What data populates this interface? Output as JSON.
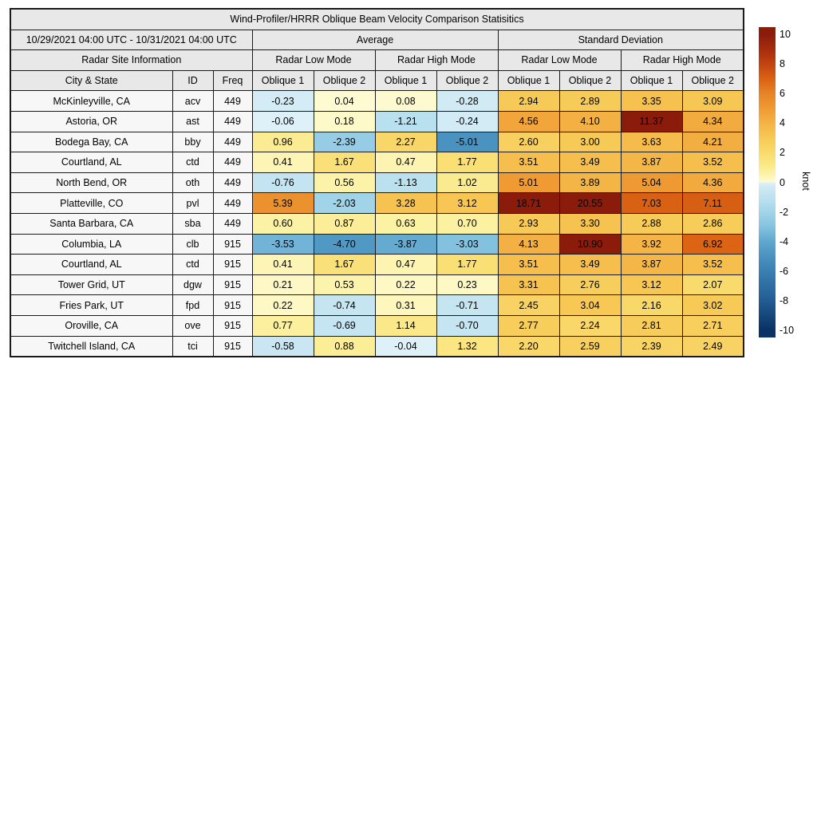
{
  "title": "Wind-Profiler/HRRR Oblique Beam Velocity Comparison Statisitics",
  "header": {
    "date_range": "10/29/2021 04:00 UTC - 10/31/2021 04:00 UTC",
    "group_average": "Average",
    "group_std": "Standard Deviation",
    "site_info": "Radar Site Information",
    "modes": [
      "Radar Low Mode",
      "Radar High Mode",
      "Radar Low Mode",
      "Radar High Mode"
    ],
    "col_city": "City & State",
    "col_id": "ID",
    "col_freq": "Freq",
    "oblique": [
      "Oblique 1",
      "Oblique 2",
      "Oblique 1",
      "Oblique 2",
      "Oblique 1",
      "Oblique 2",
      "Oblique 1",
      "Oblique 2"
    ]
  },
  "colors": {
    "header_bg": "#e8e8e8",
    "label_bg": "#f7f7f7",
    "border": "#1a1a1a"
  },
  "chart_data": {
    "type": "heatmap",
    "title": "Wind-Profiler/HRRR Oblique Beam Velocity Comparison Statisitics",
    "subtitle_period": "10/29/2021 04:00 UTC - 10/31/2021 04:00 UTC",
    "units": "knot",
    "columns": [
      "City & State",
      "ID",
      "Freq",
      "Average Radar Low Mode Oblique 1",
      "Average Radar Low Mode Oblique 2",
      "Average Radar High Mode Oblique 1",
      "Average Radar High Mode Oblique 2",
      "Std Dev Radar Low Mode Oblique 1",
      "Std Dev Radar Low Mode Oblique 2",
      "Std Dev Radar High Mode Oblique 1",
      "Std Dev Radar High Mode Oblique 2"
    ],
    "rows": [
      {
        "city": "McKinleyville, CA",
        "id": "acv",
        "freq": "449",
        "values": [
          -0.23,
          0.04,
          0.08,
          -0.28,
          2.94,
          2.89,
          3.35,
          3.09
        ]
      },
      {
        "city": "Astoria, OR",
        "id": "ast",
        "freq": "449",
        "values": [
          -0.06,
          0.18,
          -1.21,
          -0.24,
          4.56,
          4.1,
          11.37,
          4.34
        ]
      },
      {
        "city": "Bodega Bay, CA",
        "id": "bby",
        "freq": "449",
        "values": [
          0.96,
          -2.39,
          2.27,
          -5.01,
          2.6,
          3.0,
          3.63,
          4.21
        ]
      },
      {
        "city": "Courtland, AL",
        "id": "ctd",
        "freq": "449",
        "values": [
          0.41,
          1.67,
          0.47,
          1.77,
          3.51,
          3.49,
          3.87,
          3.52
        ]
      },
      {
        "city": "North Bend, OR",
        "id": "oth",
        "freq": "449",
        "values": [
          -0.76,
          0.56,
          -1.13,
          1.02,
          5.01,
          3.89,
          5.04,
          4.36
        ]
      },
      {
        "city": "Platteville, CO",
        "id": "pvl",
        "freq": "449",
        "values": [
          5.39,
          -2.03,
          3.28,
          3.12,
          18.71,
          20.55,
          7.03,
          7.11
        ]
      },
      {
        "city": "Santa Barbara, CA",
        "id": "sba",
        "freq": "449",
        "values": [
          0.6,
          0.87,
          0.63,
          0.7,
          2.93,
          3.3,
          2.88,
          2.86
        ]
      },
      {
        "city": "Columbia, LA",
        "id": "clb",
        "freq": "915",
        "values": [
          -3.53,
          -4.7,
          -3.87,
          -3.03,
          4.13,
          10.9,
          3.92,
          6.92
        ]
      },
      {
        "city": "Courtland, AL",
        "id": "ctd",
        "freq": "915",
        "values": [
          0.41,
          1.67,
          0.47,
          1.77,
          3.51,
          3.49,
          3.87,
          3.52
        ]
      },
      {
        "city": "Tower Grid, UT",
        "id": "dgw",
        "freq": "915",
        "values": [
          0.21,
          0.53,
          0.22,
          0.23,
          3.31,
          2.76,
          3.12,
          2.07
        ]
      },
      {
        "city": "Fries Park, UT",
        "id": "fpd",
        "freq": "915",
        "values": [
          0.22,
          -0.74,
          0.31,
          -0.71,
          2.45,
          3.04,
          2.16,
          3.02
        ]
      },
      {
        "city": "Oroville, CA",
        "id": "ove",
        "freq": "915",
        "values": [
          0.77,
          -0.69,
          1.14,
          -0.7,
          2.77,
          2.24,
          2.81,
          2.71
        ]
      },
      {
        "city": "Twitchell Island, CA",
        "id": "tci",
        "freq": "915",
        "values": [
          -0.58,
          0.88,
          -0.04,
          1.32,
          2.2,
          2.59,
          2.39,
          2.49
        ]
      }
    ],
    "colorbar": {
      "label": "knot",
      "ticks": [
        10,
        8,
        6,
        4,
        2,
        0,
        -2,
        -4,
        -6,
        -8,
        -10
      ],
      "vmin": -10,
      "vmax": 10,
      "display_range": 10.5,
      "legend_position": "right"
    },
    "colormap": {
      "negative": [
        [
          -10,
          "#0B3264"
        ],
        [
          -8,
          "#235C93"
        ],
        [
          -6,
          "#3A80B3"
        ],
        [
          -5,
          "#4A93C1"
        ],
        [
          -4,
          "#60A7CF"
        ],
        [
          -3,
          "#84C3DF"
        ],
        [
          -2,
          "#A2D4E9"
        ],
        [
          -1.2,
          "#B9E0EF"
        ],
        [
          -0.6,
          "#C8E6F2"
        ],
        [
          -0.25,
          "#D2EBF5"
        ],
        [
          0,
          "#E2F2F9"
        ]
      ],
      "positive": [
        [
          0,
          "#FEFBD6"
        ],
        [
          0.25,
          "#FDF8C2"
        ],
        [
          0.6,
          "#FCF2A6"
        ],
        [
          1.2,
          "#FBE886"
        ],
        [
          2,
          "#F9DB6E"
        ],
        [
          3,
          "#F7C955"
        ],
        [
          4,
          "#F4B345"
        ],
        [
          5,
          "#EF9A33"
        ],
        [
          6,
          "#E68427"
        ],
        [
          7,
          "#DA6213"
        ],
        [
          8,
          "#C24410"
        ],
        [
          9,
          "#A62C0D"
        ],
        [
          10,
          "#8B1C0C"
        ]
      ]
    }
  }
}
